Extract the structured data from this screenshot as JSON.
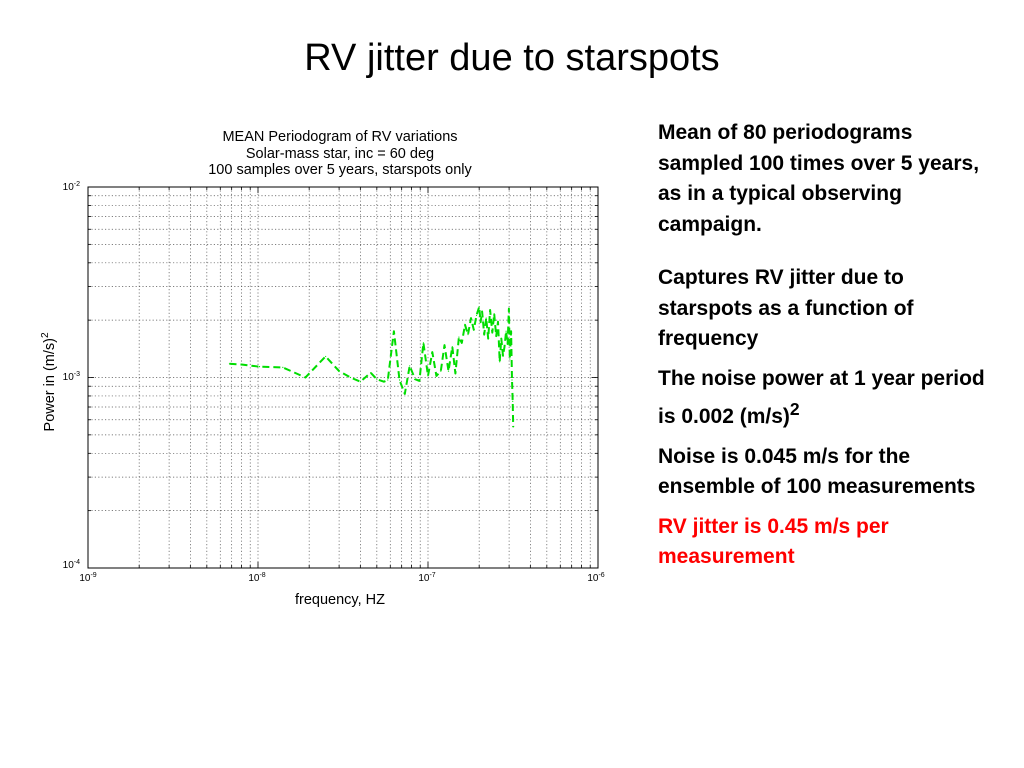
{
  "slide": {
    "title": "RV jitter due to starspots"
  },
  "chart_data": {
    "type": "line",
    "title_lines": [
      "MEAN Periodogram of RV variations",
      "Solar-mass star, inc = 60 deg",
      "100 samples over 5 years, starspots only"
    ],
    "xlabel": "frequency, HZ",
    "ylabel": "Power in (m/s)",
    "ylabel_superscript": "2",
    "x_scale": "log",
    "y_scale": "log",
    "xlim": [
      1e-09,
      1e-06
    ],
    "ylim": [
      0.0001,
      0.01
    ],
    "x_ticks": [
      {
        "base": "10",
        "exp": "-9",
        "value": 1e-09
      },
      {
        "base": "10",
        "exp": "-8",
        "value": 1e-08
      },
      {
        "base": "10",
        "exp": "-7",
        "value": 1e-07
      },
      {
        "base": "10",
        "exp": "-6",
        "value": 1e-06
      }
    ],
    "y_ticks": [
      {
        "base": "10",
        "exp": "-2",
        "value": 0.01
      },
      {
        "base": "10",
        "exp": "-3",
        "value": 0.001
      },
      {
        "base": "10",
        "exp": "-4",
        "value": 0.0001
      }
    ],
    "grid": true,
    "series": [
      {
        "color": "#00dd00",
        "style": "dashed",
        "x": [
          6.8e-09,
          8e-09,
          1.02e-08,
          1.4e-08,
          1.9e-08,
          2.5e-08,
          3e-08,
          3.5e-08,
          4e-08,
          4.6e-08,
          5e-08,
          5.5e-08,
          5.8e-08,
          6.3e-08,
          6.8e-08,
          7.3e-08,
          7.8e-08,
          8.4e-08,
          8.9e-08,
          9.4e-08,
          1e-07,
          1.06e-07,
          1.12e-07,
          1.19e-07,
          1.25e-07,
          1.32e-07,
          1.39e-07,
          1.45e-07,
          1.52e-07,
          1.58e-07,
          1.65e-07,
          1.72e-07,
          1.79e-07,
          1.86e-07,
          1.93e-07,
          2e-07,
          2.04e-07,
          2.08e-07,
          2.14e-07,
          2.2e-07,
          2.26e-07,
          2.32e-07,
          2.39e-07,
          2.45e-07,
          2.52e-07,
          2.58e-07,
          2.64e-07,
          2.7e-07,
          2.76e-07,
          2.82e-07,
          2.88e-07,
          2.94e-07,
          2.99e-07,
          3.03e-07,
          3.08e-07,
          3.12e-07,
          3.15e-07,
          3.17e-07
        ],
        "y": [
          0.00118,
          0.00117,
          0.00114,
          0.00113,
          0.001,
          0.00129,
          0.00108,
          0.001,
          0.00095,
          0.00106,
          0.00098,
          0.00095,
          0.00097,
          0.00175,
          0.00097,
          0.00082,
          0.00115,
          0.00098,
          0.00096,
          0.00152,
          0.00102,
          0.00136,
          0.00102,
          0.00108,
          0.00148,
          0.00108,
          0.00145,
          0.00105,
          0.00163,
          0.00152,
          0.00189,
          0.00168,
          0.00205,
          0.00178,
          0.00212,
          0.00235,
          0.00195,
          0.00222,
          0.00168,
          0.00205,
          0.0016,
          0.00226,
          0.00172,
          0.00216,
          0.00165,
          0.00196,
          0.00121,
          0.0016,
          0.0013,
          0.00145,
          0.00175,
          0.0015,
          0.0023,
          0.00125,
          0.00175,
          0.00097,
          0.00075,
          0.00055
        ]
      }
    ]
  },
  "notes": [
    {
      "text": "Mean of 80 periodograms sampled 100 times over 5 years, as in a typical observing campaign."
    },
    {
      "text": "Captures RV jitter due to starspots as a function of frequency"
    },
    {
      "text": "The noise power at 1 year period is 0.002 (m/s)",
      "sup": "2"
    },
    {
      "text": "Noise is 0.045 m/s for the ensemble of 100 measurements"
    },
    {
      "text": "RV jitter is 0.45 m/s per measurement",
      "color": "#ff0000"
    }
  ]
}
